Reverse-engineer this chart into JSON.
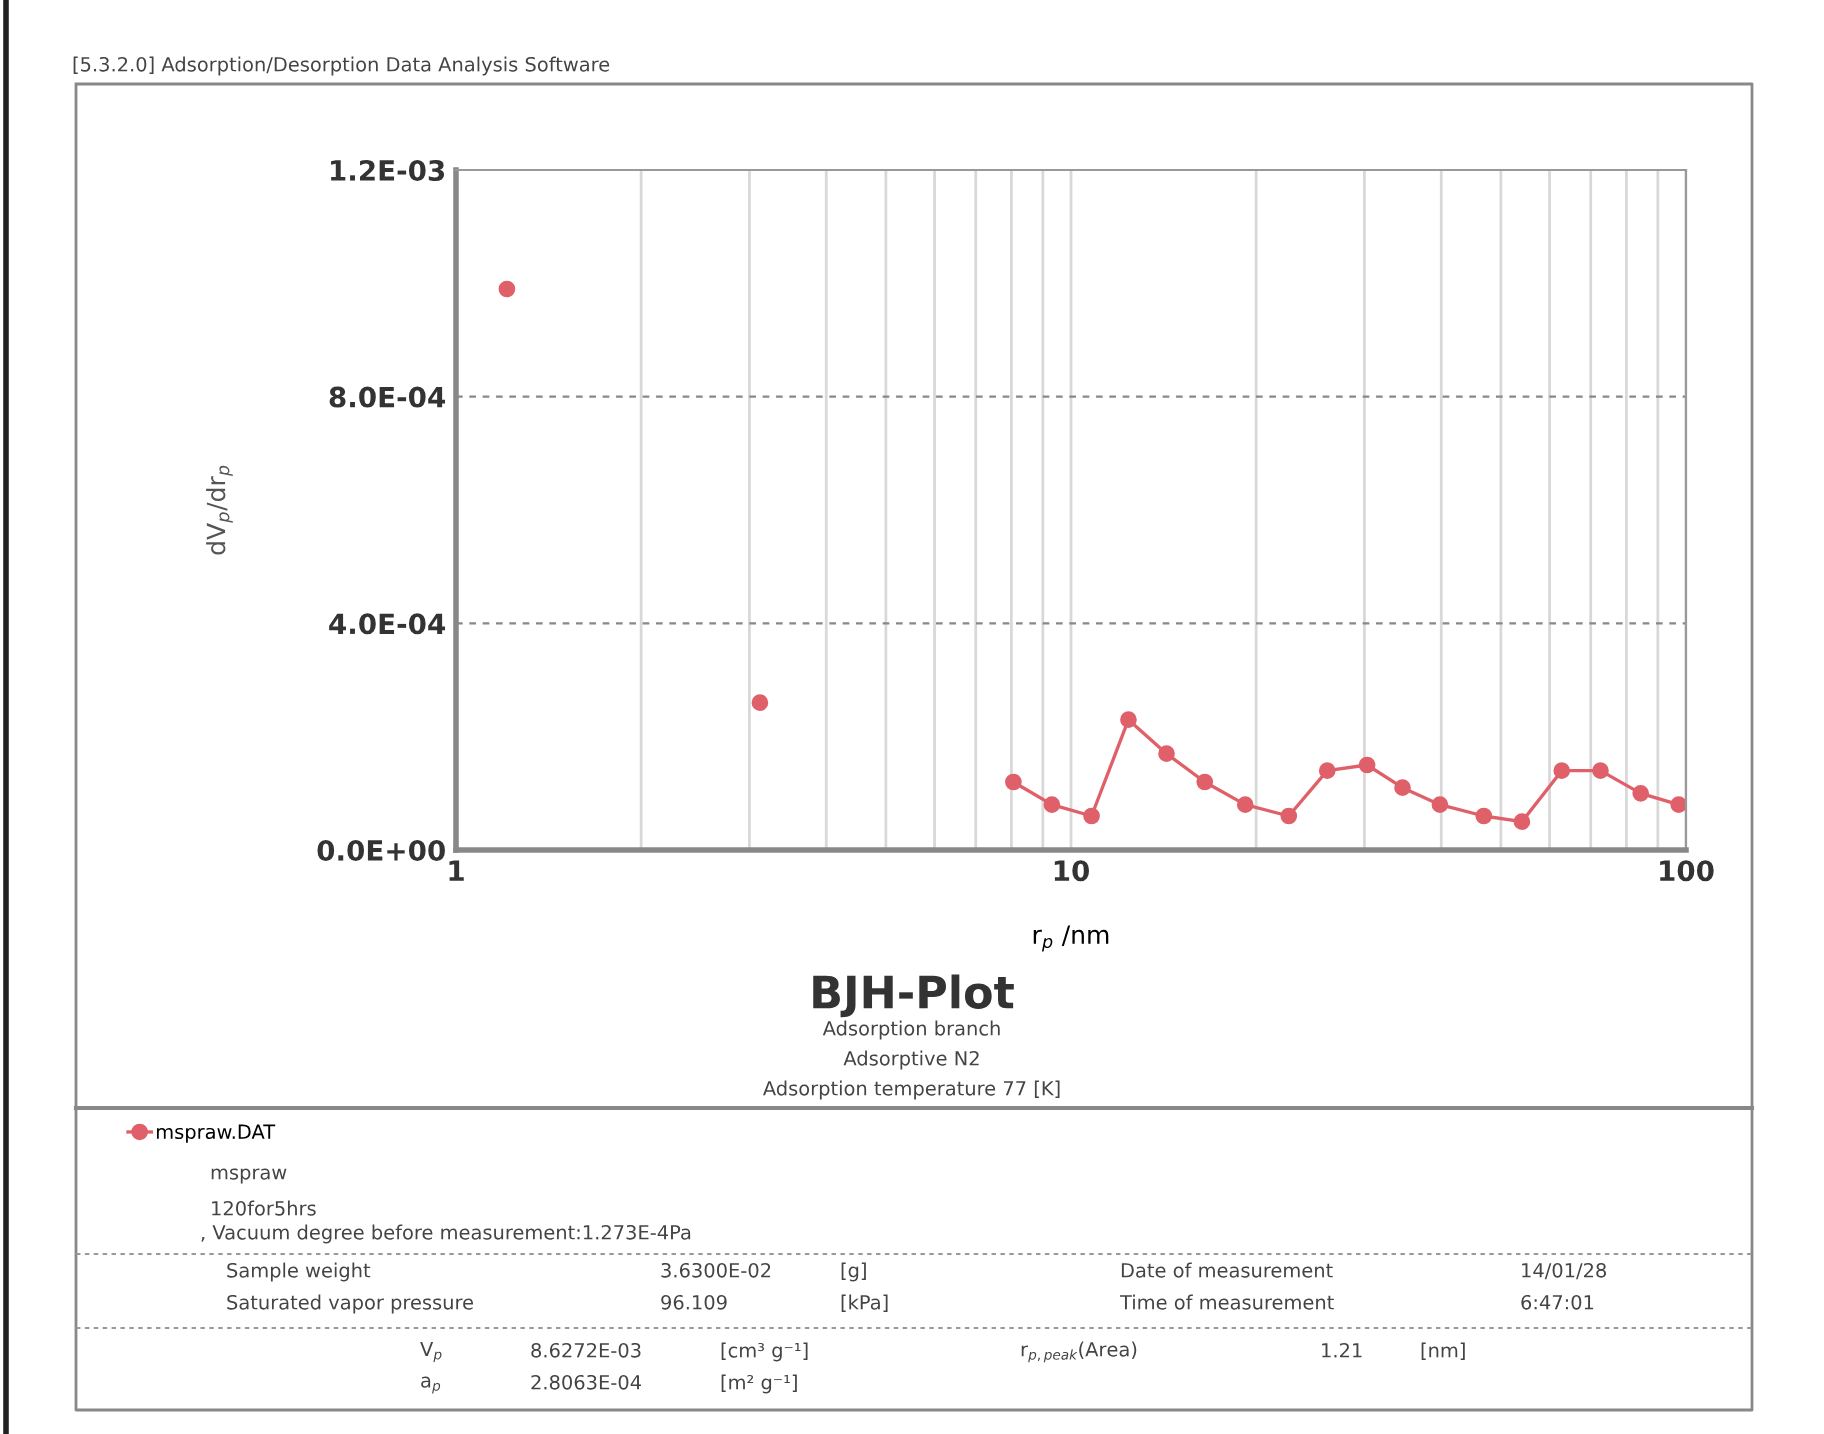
{
  "chart_data": {
    "type": "line",
    "title": "BJH-Plot",
    "subtitle": "Adsorption branch\nAdsorptive N2\nAdsorption temperature 77 [K]",
    "xlabel": "r$_{p}$ /nm",
    "ylabel": "dV$_{p}$/dr$_{p}$",
    "x": [
      1.21,
      1.5,
      2.9,
      3.12,
      3.4,
      7.4,
      8.06,
      9.31,
      10.8,
      12.4,
      14.3,
      16.5,
      19.2,
      22.6,
      26.1,
      30.3,
      34.6,
      39.8,
      46.9,
      54.1,
      62.8,
      72.6,
      84.4,
      97.3
    ],
    "series": [
      {
        "name": "mspraw.DAT",
        "color": "#e0606a",
        "values": [
          0.00099,
          null,
          null,
          0.00026,
          null,
          null,
          0.00012,
          8e-05,
          6e-05,
          0.00023,
          0.00017,
          0.00012,
          8e-05,
          6e-05,
          0.00014,
          0.00015,
          0.00011,
          8e-05,
          6e-05,
          5e-05,
          0.00014,
          0.00014,
          0.0001,
          8e-05
        ]
      }
    ],
    "log": "x",
    "xlim": [
      1,
      100
    ],
    "xticks": [
      1,
      10,
      100
    ],
    "ylim": [
      0,
      0.0012
    ],
    "yticks": [
      {
        "value": 0,
        "label": "0.0E+00"
      },
      {
        "value": 0.0004,
        "label": "4.0E-04"
      },
      {
        "value": 0.0008,
        "label": "8.0E-04"
      },
      {
        "value": 0.0012,
        "label": "1.2E-03"
      }
    ],
    "grid": true,
    "marker": "circle",
    "line_style": "solid",
    "legend": "bottom left",
    "annotations": [
      "[5.3.2.0] Adsorption/Desorption Data Analysis Software",
      "mspraw",
      "120for5hrs",
      ", Vacuum degree before measurement:1.273E-4Pa",
      "Sample weight",
      "3.6300E-02",
      "[g]",
      "Date of measurement",
      "14/01/28",
      "Saturated vapor pressure",
      "96.109",
      "[kPa]",
      "Time of measurement",
      "6:47:01",
      "V$_{p}$",
      "8.6272E-03",
      "[cm³ g⁻¹]",
      "r$_{p,peak}$(Area)",
      "1.21",
      "[nm]",
      "a$_{p}$",
      "2.8063E-04",
      "[m² g⁻¹]"
    ]
  }
}
